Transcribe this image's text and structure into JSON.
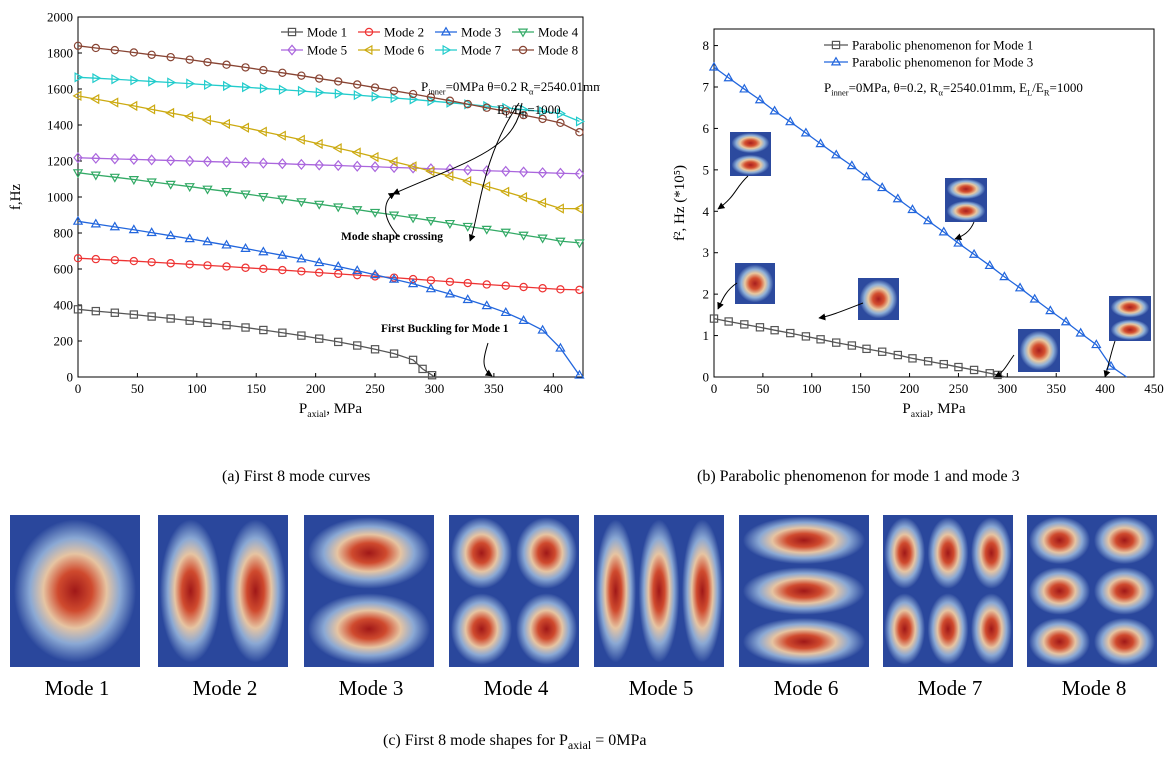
{
  "chart_data": [
    {
      "type": "line",
      "panel": "a",
      "caption": "(a)  First 8 mode curves",
      "xlabel": "P",
      "xlabel_sub": "axial",
      "xlabel_unit": ", MPa",
      "ylabel": "f,Hz",
      "xlim": [
        0,
        425
      ],
      "ylim": [
        0,
        2000
      ],
      "xticks": [
        0,
        50,
        100,
        150,
        200,
        250,
        300,
        350,
        400
      ],
      "yticks": [
        0,
        200,
        400,
        600,
        800,
        1000,
        1200,
        1400,
        1600,
        1800,
        2000
      ],
      "legend_position": "top-right",
      "series": [
        {
          "name": "Mode 1",
          "color": "#555555",
          "marker": "square",
          "x": [
            0,
            15,
            31,
            47,
            62,
            78,
            94,
            109,
            125,
            141,
            156,
            172,
            188,
            203,
            219,
            235,
            250,
            266,
            282,
            290,
            298,
            300
          ],
          "y": [
            376,
            366,
            357,
            347,
            336,
            325,
            313,
            301,
            288,
            275,
            261,
            246,
            230,
            213,
            195,
            175,
            154,
            130,
            95,
            45,
            10,
            0
          ]
        },
        {
          "name": "Mode 2",
          "color": "#ee3333",
          "marker": "circle",
          "x": [
            0,
            15,
            31,
            47,
            62,
            78,
            94,
            109,
            125,
            141,
            156,
            172,
            188,
            203,
            219,
            235,
            250,
            266,
            282,
            297,
            313,
            328,
            344,
            360,
            375,
            391,
            406,
            422
          ],
          "y": [
            660,
            655,
            649,
            644,
            638,
            632,
            626,
            620,
            614,
            607,
            601,
            594,
            587,
            580,
            573,
            566,
            559,
            552,
            544,
            537,
            529,
            522,
            514,
            507,
            500,
            493,
            487,
            484
          ]
        },
        {
          "name": "Mode 3",
          "color": "#2266dd",
          "marker": "triangle-up",
          "x": [
            0,
            15,
            31,
            47,
            62,
            78,
            94,
            109,
            125,
            141,
            156,
            172,
            188,
            203,
            219,
            235,
            250,
            266,
            282,
            297,
            313,
            328,
            344,
            360,
            375,
            391,
            406,
            422
          ],
          "y": [
            865,
            850,
            834,
            818,
            802,
            785,
            768,
            751,
            733,
            714,
            695,
            676,
            656,
            635,
            614,
            591,
            568,
            543,
            518,
            490,
            461,
            430,
            396,
            358,
            314,
            260,
            160,
            10
          ]
        },
        {
          "name": "Mode 4",
          "color": "#33aa66",
          "marker": "triangle-down",
          "x": [
            0,
            15,
            31,
            47,
            62,
            78,
            94,
            109,
            125,
            141,
            156,
            172,
            188,
            203,
            219,
            235,
            250,
            266,
            282,
            297,
            313,
            328,
            344,
            360,
            375,
            391,
            406,
            422
          ],
          "y": [
            1135,
            1122,
            1110,
            1097,
            1084,
            1071,
            1058,
            1044,
            1031,
            1017,
            1003,
            989,
            974,
            960,
            945,
            930,
            915,
            900,
            884,
            869,
            853,
            837,
            821,
            805,
            788,
            772,
            755,
            745
          ]
        },
        {
          "name": "Mode 5",
          "color": "#aa66dd",
          "marker": "diamond",
          "x": [
            0,
            15,
            31,
            47,
            62,
            78,
            94,
            109,
            125,
            141,
            156,
            172,
            188,
            203,
            219,
            235,
            250,
            266,
            282,
            297,
            313,
            328,
            344,
            360,
            375,
            391,
            406,
            422
          ],
          "y": [
            1218,
            1215,
            1212,
            1209,
            1206,
            1203,
            1200,
            1197,
            1194,
            1191,
            1188,
            1185,
            1181,
            1178,
            1175,
            1171,
            1168,
            1164,
            1161,
            1157,
            1154,
            1150,
            1146,
            1143,
            1139,
            1135,
            1132,
            1129
          ]
        },
        {
          "name": "Mode 6",
          "color": "#ccaa11",
          "marker": "triangle-left",
          "x": [
            0,
            15,
            31,
            47,
            62,
            78,
            94,
            109,
            125,
            141,
            156,
            172,
            188,
            203,
            219,
            235,
            250,
            266,
            282,
            297,
            313,
            328,
            344,
            360,
            375,
            391,
            406,
            422
          ],
          "y": [
            1562,
            1544,
            1525,
            1506,
            1487,
            1467,
            1447,
            1427,
            1406,
            1385,
            1363,
            1341,
            1318,
            1295,
            1271,
            1247,
            1222,
            1196,
            1170,
            1143,
            1116,
            1088,
            1059,
            1029,
            999,
            968,
            936,
            935
          ]
        },
        {
          "name": "Mode 7",
          "color": "#22cccc",
          "marker": "triangle-right",
          "x": [
            0,
            15,
            31,
            47,
            62,
            78,
            94,
            109,
            125,
            141,
            156,
            172,
            188,
            203,
            219,
            235,
            250,
            266,
            282,
            297,
            313,
            328,
            344,
            360,
            375,
            391,
            406,
            422
          ],
          "y": [
            1665,
            1660,
            1654,
            1648,
            1642,
            1636,
            1630,
            1623,
            1617,
            1610,
            1603,
            1596,
            1589,
            1581,
            1574,
            1566,
            1558,
            1550,
            1542,
            1533,
            1524,
            1515,
            1505,
            1495,
            1485,
            1475,
            1464,
            1420
          ]
        },
        {
          "name": "Mode 8",
          "color": "#884433",
          "marker": "circle",
          "x": [
            0,
            15,
            31,
            47,
            62,
            78,
            94,
            109,
            125,
            141,
            156,
            172,
            188,
            203,
            219,
            235,
            250,
            266,
            282,
            297,
            313,
            328,
            344,
            360,
            375,
            391,
            406,
            422
          ],
          "y": [
            1840,
            1828,
            1816,
            1803,
            1790,
            1777,
            1763,
            1749,
            1735,
            1720,
            1705,
            1690,
            1674,
            1658,
            1642,
            1625,
            1608,
            1590,
            1572,
            1554,
            1535,
            1516,
            1496,
            1476,
            1455,
            1434,
            1412,
            1360
          ]
        }
      ],
      "annotations": [
        {
          "id": "param-1",
          "text": "P",
          "sub": "inner",
          "rest": "=0MPa  θ=0.2  R",
          "sub2": "α",
          "rest2": "=2540.01mm"
        },
        {
          "id": "param-2",
          "text": "E",
          "sub": "L",
          "rest": "/E",
          "sub2": "R",
          "rest2": "=1000"
        },
        {
          "id": "mode-crossing",
          "text": "Mode shape crossing"
        },
        {
          "id": "first-buckling",
          "text": "First Buckling for Mode 1"
        }
      ]
    },
    {
      "type": "line",
      "panel": "b",
      "caption": "(b)  Parabolic phenomenon for mode 1 and mode 3",
      "xlabel": "P",
      "xlabel_sub": "axial",
      "xlabel_unit": ", MPa",
      "ylabel": "f², Hz (*10⁵)",
      "xlim": [
        0,
        450
      ],
      "ylim": [
        0,
        8.4
      ],
      "xticks": [
        0,
        50,
        100,
        150,
        200,
        250,
        300,
        350,
        400,
        450
      ],
      "yticks": [
        0,
        1,
        2,
        3,
        4,
        5,
        6,
        7,
        8
      ],
      "legend_position": "top",
      "series": [
        {
          "name": "Parabolic phenomenon for Mode 1",
          "color": "#555555",
          "marker": "square",
          "x": [
            0,
            15,
            31,
            47,
            62,
            78,
            94,
            109,
            125,
            141,
            156,
            172,
            188,
            203,
            219,
            235,
            250,
            266,
            282,
            290,
            298
          ],
          "y": [
            1.41,
            1.34,
            1.27,
            1.2,
            1.13,
            1.06,
            0.98,
            0.91,
            0.83,
            0.76,
            0.68,
            0.61,
            0.53,
            0.45,
            0.38,
            0.31,
            0.24,
            0.17,
            0.09,
            0.05,
            0.0
          ]
        },
        {
          "name": "Parabolic phenomenon for Mode 3",
          "color": "#2266dd",
          "marker": "triangle-up",
          "x": [
            0,
            15,
            31,
            47,
            62,
            78,
            94,
            109,
            125,
            141,
            156,
            172,
            188,
            203,
            219,
            235,
            250,
            266,
            282,
            297,
            313,
            328,
            344,
            360,
            375,
            391,
            406,
            422
          ],
          "y": [
            7.48,
            7.22,
            6.95,
            6.69,
            6.42,
            6.16,
            5.89,
            5.63,
            5.36,
            5.1,
            4.83,
            4.57,
            4.3,
            4.04,
            3.77,
            3.5,
            3.23,
            2.96,
            2.69,
            2.42,
            2.15,
            1.88,
            1.6,
            1.33,
            1.06,
            0.78,
            0.26,
            0.0
          ]
        }
      ],
      "annotations": [
        {
          "id": "param-line",
          "text": "P",
          "sub": "inner",
          "rest": "=0MPa,  θ=0.2,  R",
          "sub2": "α",
          "rest2": "=2540.01mm,  E",
          "sub3": "L",
          "rest3": "/E",
          "sub4": "R",
          "rest4": "=1000"
        }
      ]
    }
  ],
  "mode_shapes": {
    "caption_prefix": "(c)  First 8 mode shapes for P",
    "caption_sub": "axial",
    "caption_suffix": " = 0MPa",
    "items": [
      {
        "label": "Mode 1",
        "pattern": "1x1"
      },
      {
        "label": "Mode 2",
        "pattern": "2x1"
      },
      {
        "label": "Mode 3",
        "pattern": "1x2"
      },
      {
        "label": "Mode 4",
        "pattern": "2x2"
      },
      {
        "label": "Mode 5",
        "pattern": "3x1"
      },
      {
        "label": "Mode 6",
        "pattern": "1x3"
      },
      {
        "label": "Mode 7",
        "pattern": "3x2"
      },
      {
        "label": "Mode 8",
        "pattern": "2x3"
      }
    ]
  }
}
